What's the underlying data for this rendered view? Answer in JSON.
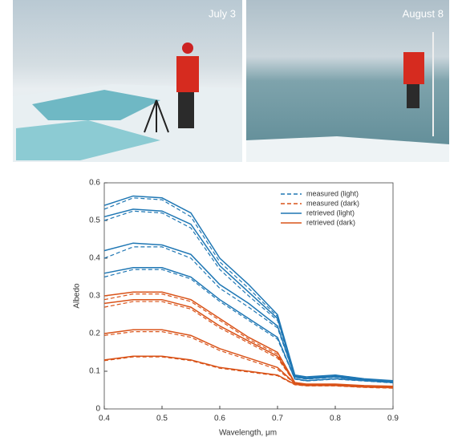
{
  "photos": [
    {
      "label": "July 3"
    },
    {
      "label": "August 8"
    }
  ],
  "chart_data": {
    "type": "line",
    "xlabel": "Wavelength, μm",
    "ylabel": "Albedo",
    "x": [
      0.4,
      0.45,
      0.5,
      0.55,
      0.6,
      0.65,
      0.7,
      0.73,
      0.75,
      0.8,
      0.85,
      0.9
    ],
    "xlim": [
      0.4,
      0.9
    ],
    "xticks": [
      0.4,
      0.5,
      0.6,
      0.7,
      0.8,
      0.9
    ],
    "ylim": [
      0,
      0.6
    ],
    "yticks": [
      0,
      0.1,
      0.2,
      0.3,
      0.4,
      0.5,
      0.6
    ],
    "grid": false,
    "legend": "upper right",
    "series": [
      {
        "name": "measured (light)",
        "color": "#1f77b4",
        "dash": true,
        "curves": [
          [
            0.53,
            0.56,
            0.555,
            0.51,
            0.39,
            0.32,
            0.245,
            0.09,
            0.084,
            0.09,
            0.08,
            0.074
          ],
          [
            0.5,
            0.525,
            0.52,
            0.48,
            0.37,
            0.3,
            0.235,
            0.087,
            0.081,
            0.087,
            0.077,
            0.072
          ],
          [
            0.4,
            0.43,
            0.43,
            0.4,
            0.32,
            0.27,
            0.215,
            0.084,
            0.079,
            0.084,
            0.075,
            0.071
          ],
          [
            0.35,
            0.37,
            0.37,
            0.345,
            0.285,
            0.235,
            0.185,
            0.079,
            0.074,
            0.079,
            0.074,
            0.069
          ]
        ]
      },
      {
        "name": "measured (dark)",
        "color": "#d95319",
        "dash": true,
        "curves": [
          [
            0.29,
            0.305,
            0.305,
            0.285,
            0.235,
            0.185,
            0.145,
            0.069,
            0.065,
            0.065,
            0.061,
            0.059
          ],
          [
            0.27,
            0.285,
            0.285,
            0.265,
            0.215,
            0.175,
            0.135,
            0.069,
            0.064,
            0.064,
            0.06,
            0.059
          ],
          [
            0.195,
            0.205,
            0.205,
            0.19,
            0.155,
            0.13,
            0.105,
            0.067,
            0.063,
            0.063,
            0.059,
            0.057
          ],
          [
            0.128,
            0.138,
            0.138,
            0.128,
            0.108,
            0.098,
            0.088,
            0.064,
            0.061,
            0.061,
            0.057,
            0.055
          ]
        ]
      },
      {
        "name": "retrieved (light)",
        "color": "#1f77b4",
        "dash": false,
        "curves": [
          [
            0.54,
            0.565,
            0.56,
            0.52,
            0.4,
            0.33,
            0.25,
            0.09,
            0.085,
            0.09,
            0.08,
            0.075
          ],
          [
            0.51,
            0.53,
            0.525,
            0.49,
            0.38,
            0.31,
            0.24,
            0.088,
            0.082,
            0.088,
            0.078,
            0.073
          ],
          [
            0.42,
            0.44,
            0.435,
            0.41,
            0.33,
            0.28,
            0.22,
            0.085,
            0.08,
            0.085,
            0.076,
            0.072
          ],
          [
            0.36,
            0.375,
            0.375,
            0.35,
            0.29,
            0.24,
            0.19,
            0.08,
            0.075,
            0.08,
            0.075,
            0.07
          ]
        ]
      },
      {
        "name": "retrieved (dark)",
        "color": "#d95319",
        "dash": false,
        "curves": [
          [
            0.3,
            0.31,
            0.31,
            0.29,
            0.24,
            0.19,
            0.15,
            0.07,
            0.066,
            0.066,
            0.062,
            0.06
          ],
          [
            0.28,
            0.29,
            0.29,
            0.27,
            0.22,
            0.18,
            0.14,
            0.07,
            0.065,
            0.065,
            0.061,
            0.06
          ],
          [
            0.2,
            0.21,
            0.21,
            0.195,
            0.16,
            0.135,
            0.11,
            0.068,
            0.064,
            0.064,
            0.06,
            0.058
          ],
          [
            0.13,
            0.14,
            0.14,
            0.13,
            0.11,
            0.1,
            0.09,
            0.065,
            0.062,
            0.062,
            0.058,
            0.056
          ]
        ]
      }
    ]
  }
}
